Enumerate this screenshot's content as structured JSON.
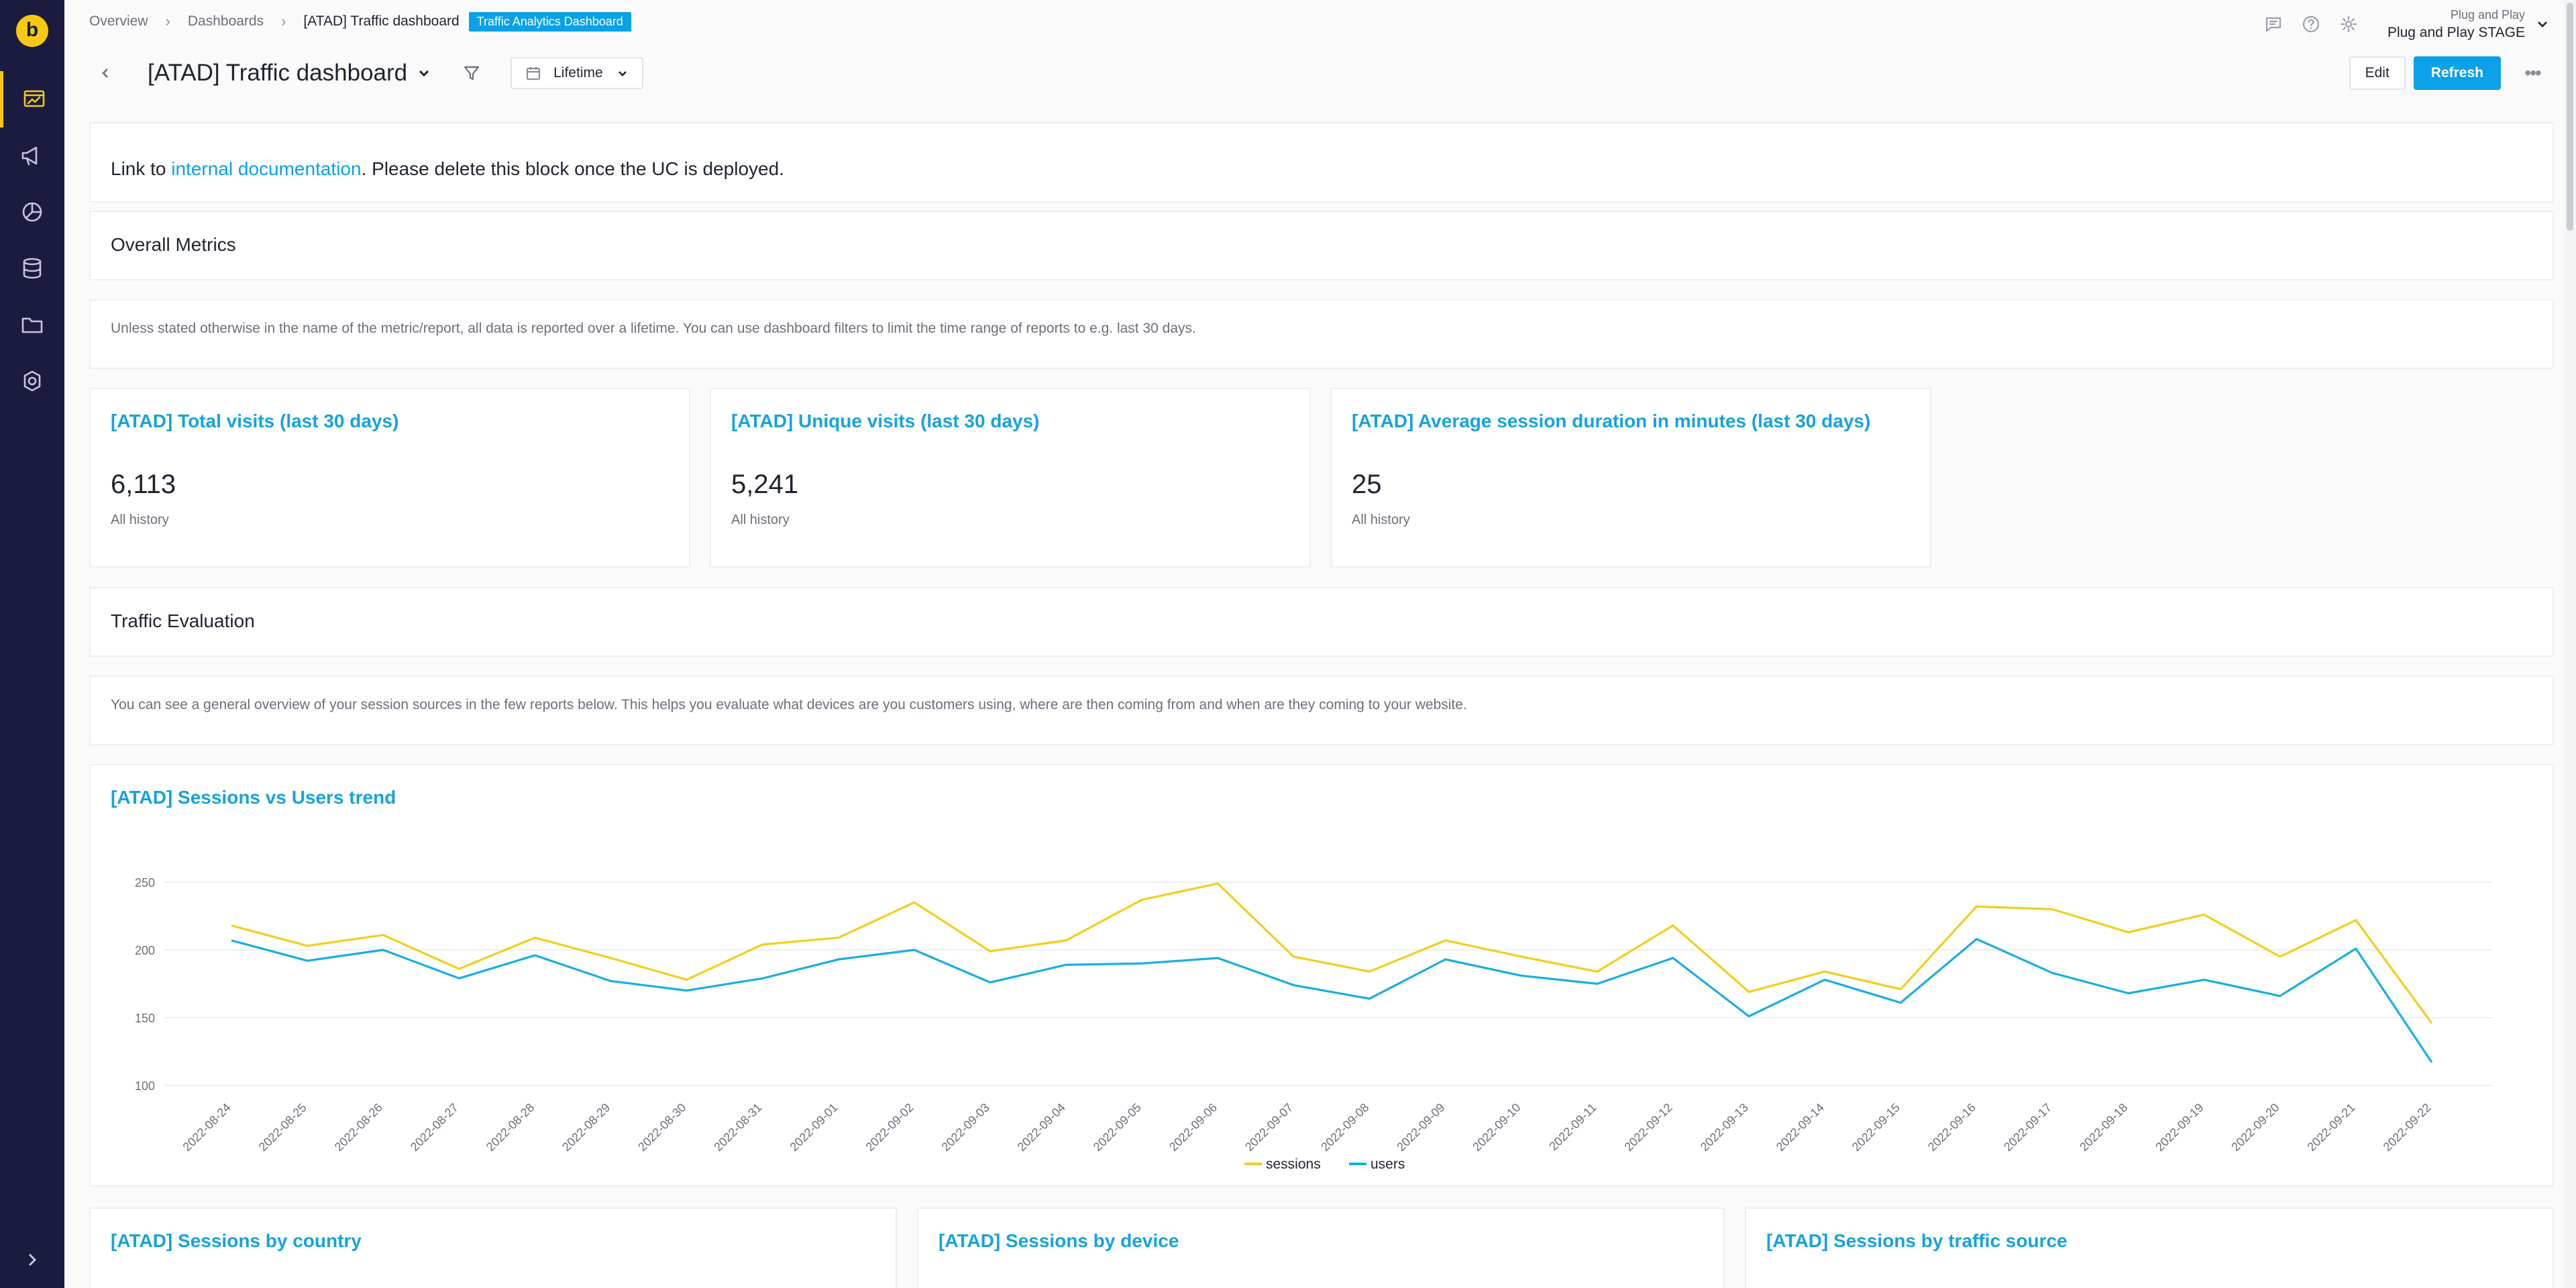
{
  "sidebar": {
    "logo_letter": "b",
    "items": [
      {
        "icon": "dashboard-icon",
        "active": true
      },
      {
        "icon": "megaphone-icon",
        "active": false
      },
      {
        "icon": "pie-chart-icon",
        "active": false
      },
      {
        "icon": "database-icon",
        "active": false
      },
      {
        "icon": "folder-icon",
        "active": false
      },
      {
        "icon": "compass-icon",
        "active": false
      }
    ]
  },
  "breadcrumb": {
    "items": [
      "Overview",
      "Dashboards",
      "[ATAD] Traffic dashboard"
    ],
    "badge": "Traffic Analytics Dashboard"
  },
  "header": {
    "org_sub": "Plug and Play",
    "org_name": "Plug and Play STAGE",
    "title": "[ATAD] Traffic dashboard",
    "date_filter": "Lifetime",
    "edit_label": "Edit",
    "refresh_label": "Refresh"
  },
  "blocks": {
    "doc_prefix": "Link to ",
    "doc_link": "internal documentation",
    "doc_suffix": ". Please delete this block once the UC is deployed.",
    "overall_title": "Overall Metrics",
    "overall_note": "Unless stated otherwise in the name of the metric/report, all data is reported over a lifetime. You can use dashboard filters to limit the time range of reports to e.g. last 30 days.",
    "traffic_title": "Traffic Evaluation",
    "traffic_note": "You can see a general overview of your session sources in the few reports below. This helps you evaluate what devices are you customers using, where are then coming from and when are they coming to your website."
  },
  "metrics": [
    {
      "title": "[ATAD] Total visits (last 30 days)",
      "value": "6,113",
      "sub": "All history"
    },
    {
      "title": "[ATAD] Unique visits (last 30 days)",
      "value": "5,241",
      "sub": "All history"
    },
    {
      "title": "[ATAD] Average session duration in minutes (last 30 days)",
      "value": "25",
      "sub": "All history"
    }
  ],
  "bottom_cards": [
    "[ATAD] Sessions by country",
    "[ATAD] Sessions by device",
    "[ATAD] Sessions by traffic source"
  ],
  "chart_title": "[ATAD] Sessions vs Users trend",
  "chart_data": {
    "type": "line",
    "x": [
      "2022-08-24",
      "2022-08-25",
      "2022-08-26",
      "2022-08-27",
      "2022-08-28",
      "2022-08-29",
      "2022-08-30",
      "2022-08-31",
      "2022-09-01",
      "2022-09-02",
      "2022-09-03",
      "2022-09-04",
      "2022-09-05",
      "2022-09-06",
      "2022-09-07",
      "2022-09-08",
      "2022-09-09",
      "2022-09-10",
      "2022-09-11",
      "2022-09-12",
      "2022-09-13",
      "2022-09-14",
      "2022-09-15",
      "2022-09-16",
      "2022-09-17",
      "2022-09-18",
      "2022-09-19",
      "2022-09-20",
      "2022-09-21",
      "2022-09-22"
    ],
    "series": [
      {
        "name": "sessions",
        "color": "#f2cf1d",
        "values": [
          218,
          203,
          211,
          186,
          209,
          194,
          178,
          204,
          209,
          235,
          199,
          207,
          237,
          249,
          195,
          184,
          207,
          195,
          184,
          218,
          169,
          184,
          171,
          232,
          230,
          213,
          226,
          195,
          222,
          146
        ]
      },
      {
        "name": "users",
        "color": "#19aee0",
        "values": [
          207,
          192,
          200,
          179,
          196,
          177,
          170,
          179,
          193,
          200,
          176,
          189,
          190,
          194,
          174,
          164,
          193,
          181,
          175,
          194,
          151,
          178,
          161,
          208,
          183,
          168,
          178,
          166,
          201,
          117
        ]
      }
    ],
    "yticks": [
      100,
      150,
      200,
      250
    ],
    "ylim": [
      100,
      250
    ],
    "legend_position": "bottom"
  }
}
